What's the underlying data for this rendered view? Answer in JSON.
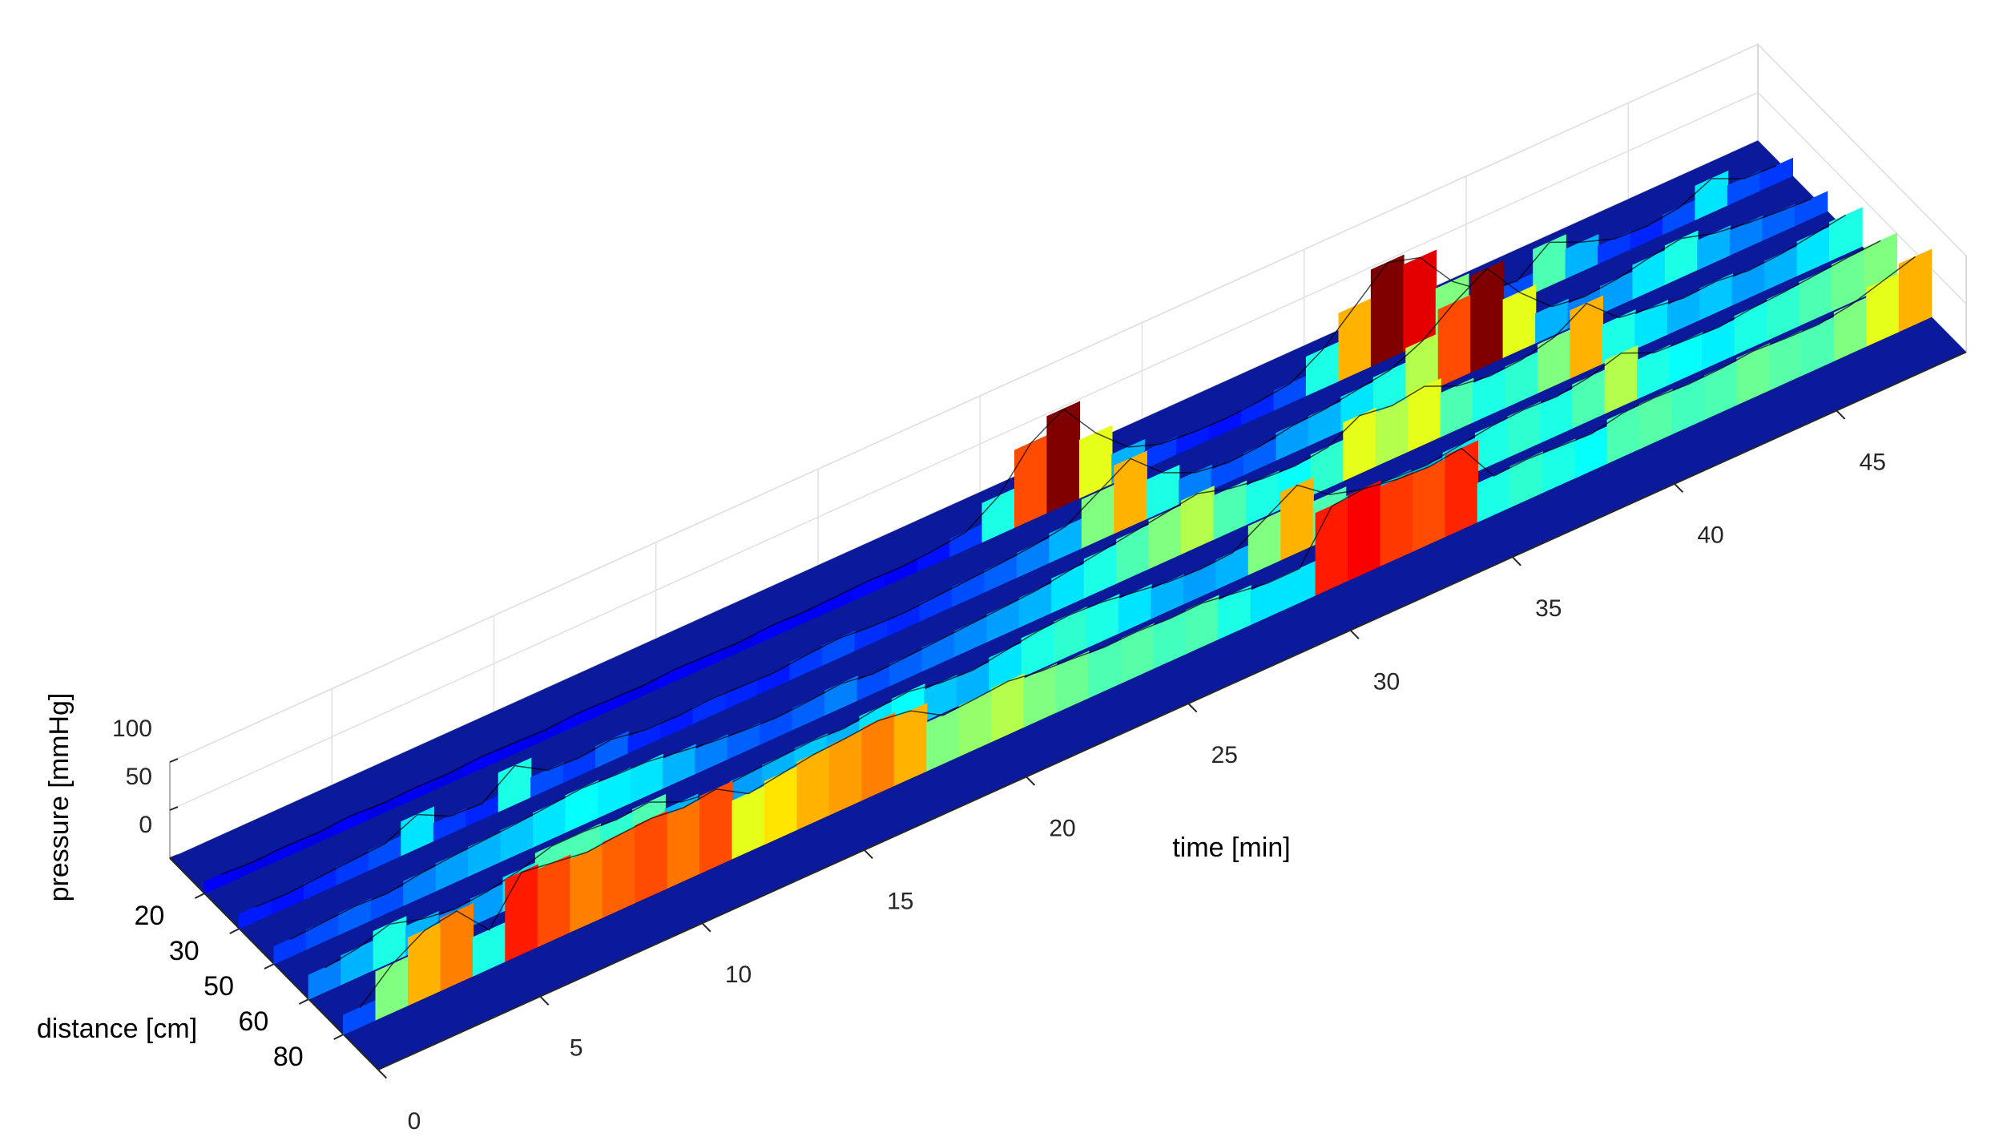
{
  "chart_data": {
    "type": "surface3d",
    "xlabel": "time [min]",
    "ylabel": "distance [cm]",
    "zlabel": "pressure [mmHg]",
    "colormap": "jet",
    "grid": true,
    "x": [
      0,
      1,
      2,
      3,
      4,
      5,
      6,
      7,
      8,
      9,
      10,
      11,
      12,
      13,
      14,
      15,
      16,
      17,
      18,
      19,
      20,
      21,
      22,
      23,
      24,
      25,
      26,
      27,
      28,
      29,
      30,
      31,
      32,
      33,
      34,
      35,
      36,
      37,
      38,
      39,
      40,
      41,
      42,
      43,
      44,
      45,
      46,
      47,
      48
    ],
    "xlim": [
      0,
      49
    ],
    "xticks": [
      0,
      5,
      10,
      15,
      20,
      25,
      30,
      35,
      40,
      45
    ],
    "distances": [
      20,
      30,
      50,
      60,
      80
    ],
    "zlim": [
      0,
      100
    ],
    "zticks": [
      0,
      50,
      100
    ],
    "values": [
      [
        12,
        10,
        11,
        10,
        12,
        10,
        11,
        10,
        12,
        11,
        10,
        12,
        11,
        10,
        12,
        11,
        10,
        12,
        11,
        12,
        13,
        12,
        14,
        18,
        40,
        80,
        100,
        60,
        30,
        18,
        15,
        14,
        16,
        20,
        40,
        70,
        100,
        90,
        50,
        25,
        20,
        45,
        30,
        18,
        16,
        20,
        35,
        20,
        18
      ],
      [
        15,
        14,
        16,
        18,
        20,
        35,
        18,
        16,
        40,
        20,
        18,
        22,
        16,
        15,
        17,
        16,
        15,
        18,
        20,
        17,
        16,
        18,
        20,
        22,
        25,
        30,
        50,
        70,
        40,
        25,
        20,
        22,
        28,
        30,
        35,
        40,
        55,
        80,
        100,
        60,
        30,
        25,
        28,
        35,
        40,
        30,
        25,
        22,
        20
      ],
      [
        18,
        20,
        22,
        20,
        25,
        28,
        30,
        32,
        35,
        38,
        36,
        35,
        30,
        25,
        22,
        20,
        22,
        25,
        20,
        22,
        24,
        26,
        28,
        30,
        35,
        40,
        45,
        50,
        55,
        45,
        40,
        38,
        42,
        60,
        55,
        60,
        45,
        40,
        42,
        50,
        70,
        40,
        35,
        30,
        32,
        28,
        30,
        35,
        40
      ],
      [
        25,
        30,
        40,
        30,
        25,
        28,
        35,
        45,
        45,
        42,
        45,
        30,
        25,
        28,
        30,
        32,
        30,
        35,
        38,
        32,
        30,
        35,
        40,
        42,
        40,
        35,
        30,
        28,
        30,
        50,
        70,
        45,
        35,
        32,
        30,
        35,
        40,
        42,
        40,
        45,
        55,
        40,
        38,
        36,
        40,
        42,
        45,
        48,
        50
      ],
      [
        20,
        50,
        70,
        75,
        40,
        85,
        80,
        75,
        78,
        80,
        76,
        80,
        60,
        65,
        70,
        72,
        75,
        70,
        50,
        52,
        55,
        50,
        48,
        45,
        46,
        44,
        45,
        40,
        35,
        35,
        85,
        88,
        82,
        80,
        84,
        40,
        42,
        40,
        38,
        45,
        46,
        44,
        45,
        48,
        46,
        45,
        50,
        60,
        70
      ]
    ]
  }
}
